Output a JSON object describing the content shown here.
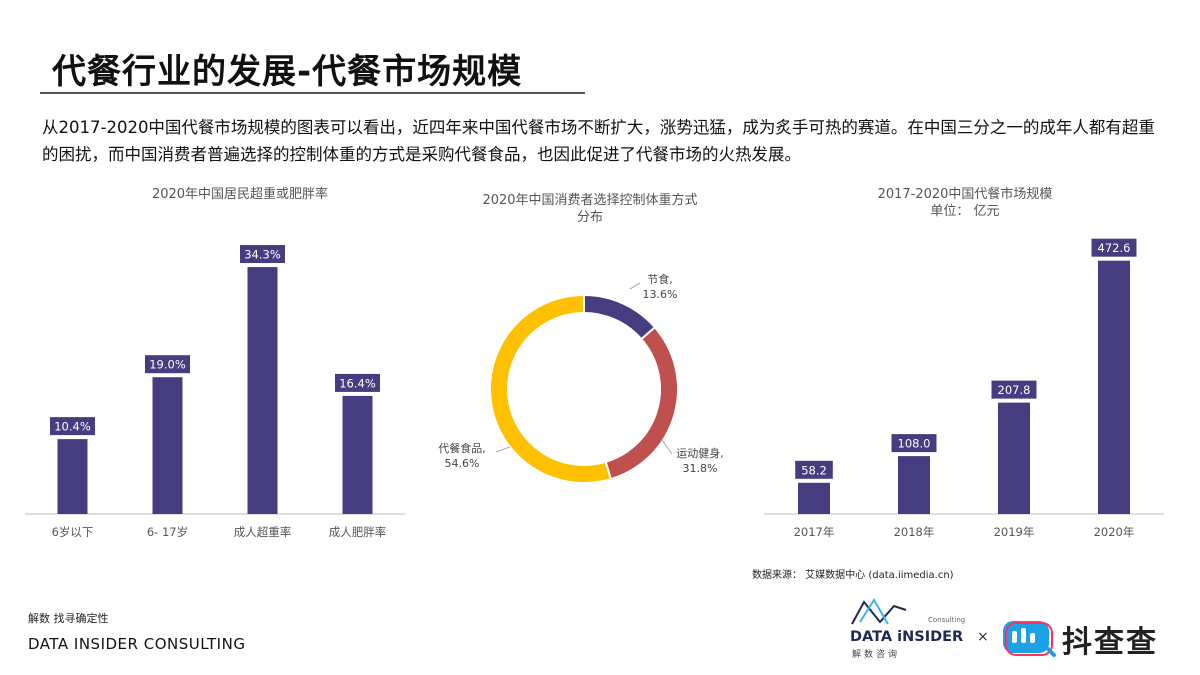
{
  "header": {
    "title": "代餐行业的发展-代餐市场规模",
    "intro": "从2017-2020中国代餐市场规模的图表可以看出，近四年来中国代餐市场不断扩大，涨势迅猛，成为炙手可热的赛道。在中国三分之一的成年人都有超重的困扰，而中国消费者普遍选择的控制体重的方式是采购代餐食品，也因此促进了代餐市场的火热发展。"
  },
  "chart1": {
    "title": "2020年中国居民超重或肥胖率"
  },
  "chart2": {
    "title_line1": "2020年中国消费者选择控制体重方式",
    "title_line2": "分布"
  },
  "chart3": {
    "title_line1": "2017-2020中国代餐市场规模",
    "title_line2": "单位： 亿元"
  },
  "chart_data": [
    {
      "type": "bar",
      "title": "2020年中国居民超重或肥胖率",
      "categories": [
        "6岁以下",
        "6- 17岁",
        "成人超重率",
        "成人肥胖率"
      ],
      "values": [
        10.4,
        19.0,
        34.3,
        16.4
      ],
      "value_labels": [
        "10.4%",
        "19.0%",
        "34.3%",
        "16.4%"
      ],
      "unit": "%",
      "ylim": [
        0,
        40
      ],
      "grid": false,
      "legend": "none",
      "color": "#463c80"
    },
    {
      "type": "pie",
      "style": "donut",
      "title": "2020年中国消费者选择控制体重方式分布",
      "slices": [
        {
          "name": "节食",
          "value": 13.6,
          "label_line1": "节食,",
          "label_line2": "13.6%",
          "color": "#463c80"
        },
        {
          "name": "运动健身",
          "value": 31.8,
          "label_line1": "运动健身,",
          "label_line2": "31.8%",
          "color": "#c0504d"
        },
        {
          "name": "代餐食品",
          "value": 54.6,
          "label_line1": "代餐食品,",
          "label_line2": "54.6%",
          "color": "#ffc000"
        }
      ]
    },
    {
      "type": "bar",
      "title": "2017-2020中国代餐市场规模",
      "subtitle": "单位： 亿元",
      "categories": [
        "2017年",
        "2018年",
        "2019年",
        "2020年"
      ],
      "values": [
        58.2,
        108.0,
        207.8,
        472.6
      ],
      "value_labels": [
        "58.2",
        "108.0",
        "207.8",
        "472.6"
      ],
      "unit": "亿元",
      "ylim": [
        0,
        500
      ],
      "grid": false,
      "legend": "none",
      "color": "#463c80"
    }
  ],
  "source": "数据来源：   艾媒数据中心    (data.iimedia.cn)",
  "footer": {
    "cn": "解数 找寻确定性",
    "en": "DATA INSIDER CONSULTING"
  },
  "logos": {
    "data_insider": "DATA iNSIDER",
    "data_insider_cn": "解数咨询",
    "consulting": "Consulting",
    "times": "×",
    "douchacha": "抖查查"
  },
  "colors": {
    "bar": "#463c80",
    "label_bg": "#463c80",
    "donut_blue": "#463c80",
    "donut_red": "#c0504d",
    "donut_yellow": "#ffc000",
    "douchacha_accent": "#1aa1e6",
    "douchacha_pink": "#ff2e63"
  }
}
